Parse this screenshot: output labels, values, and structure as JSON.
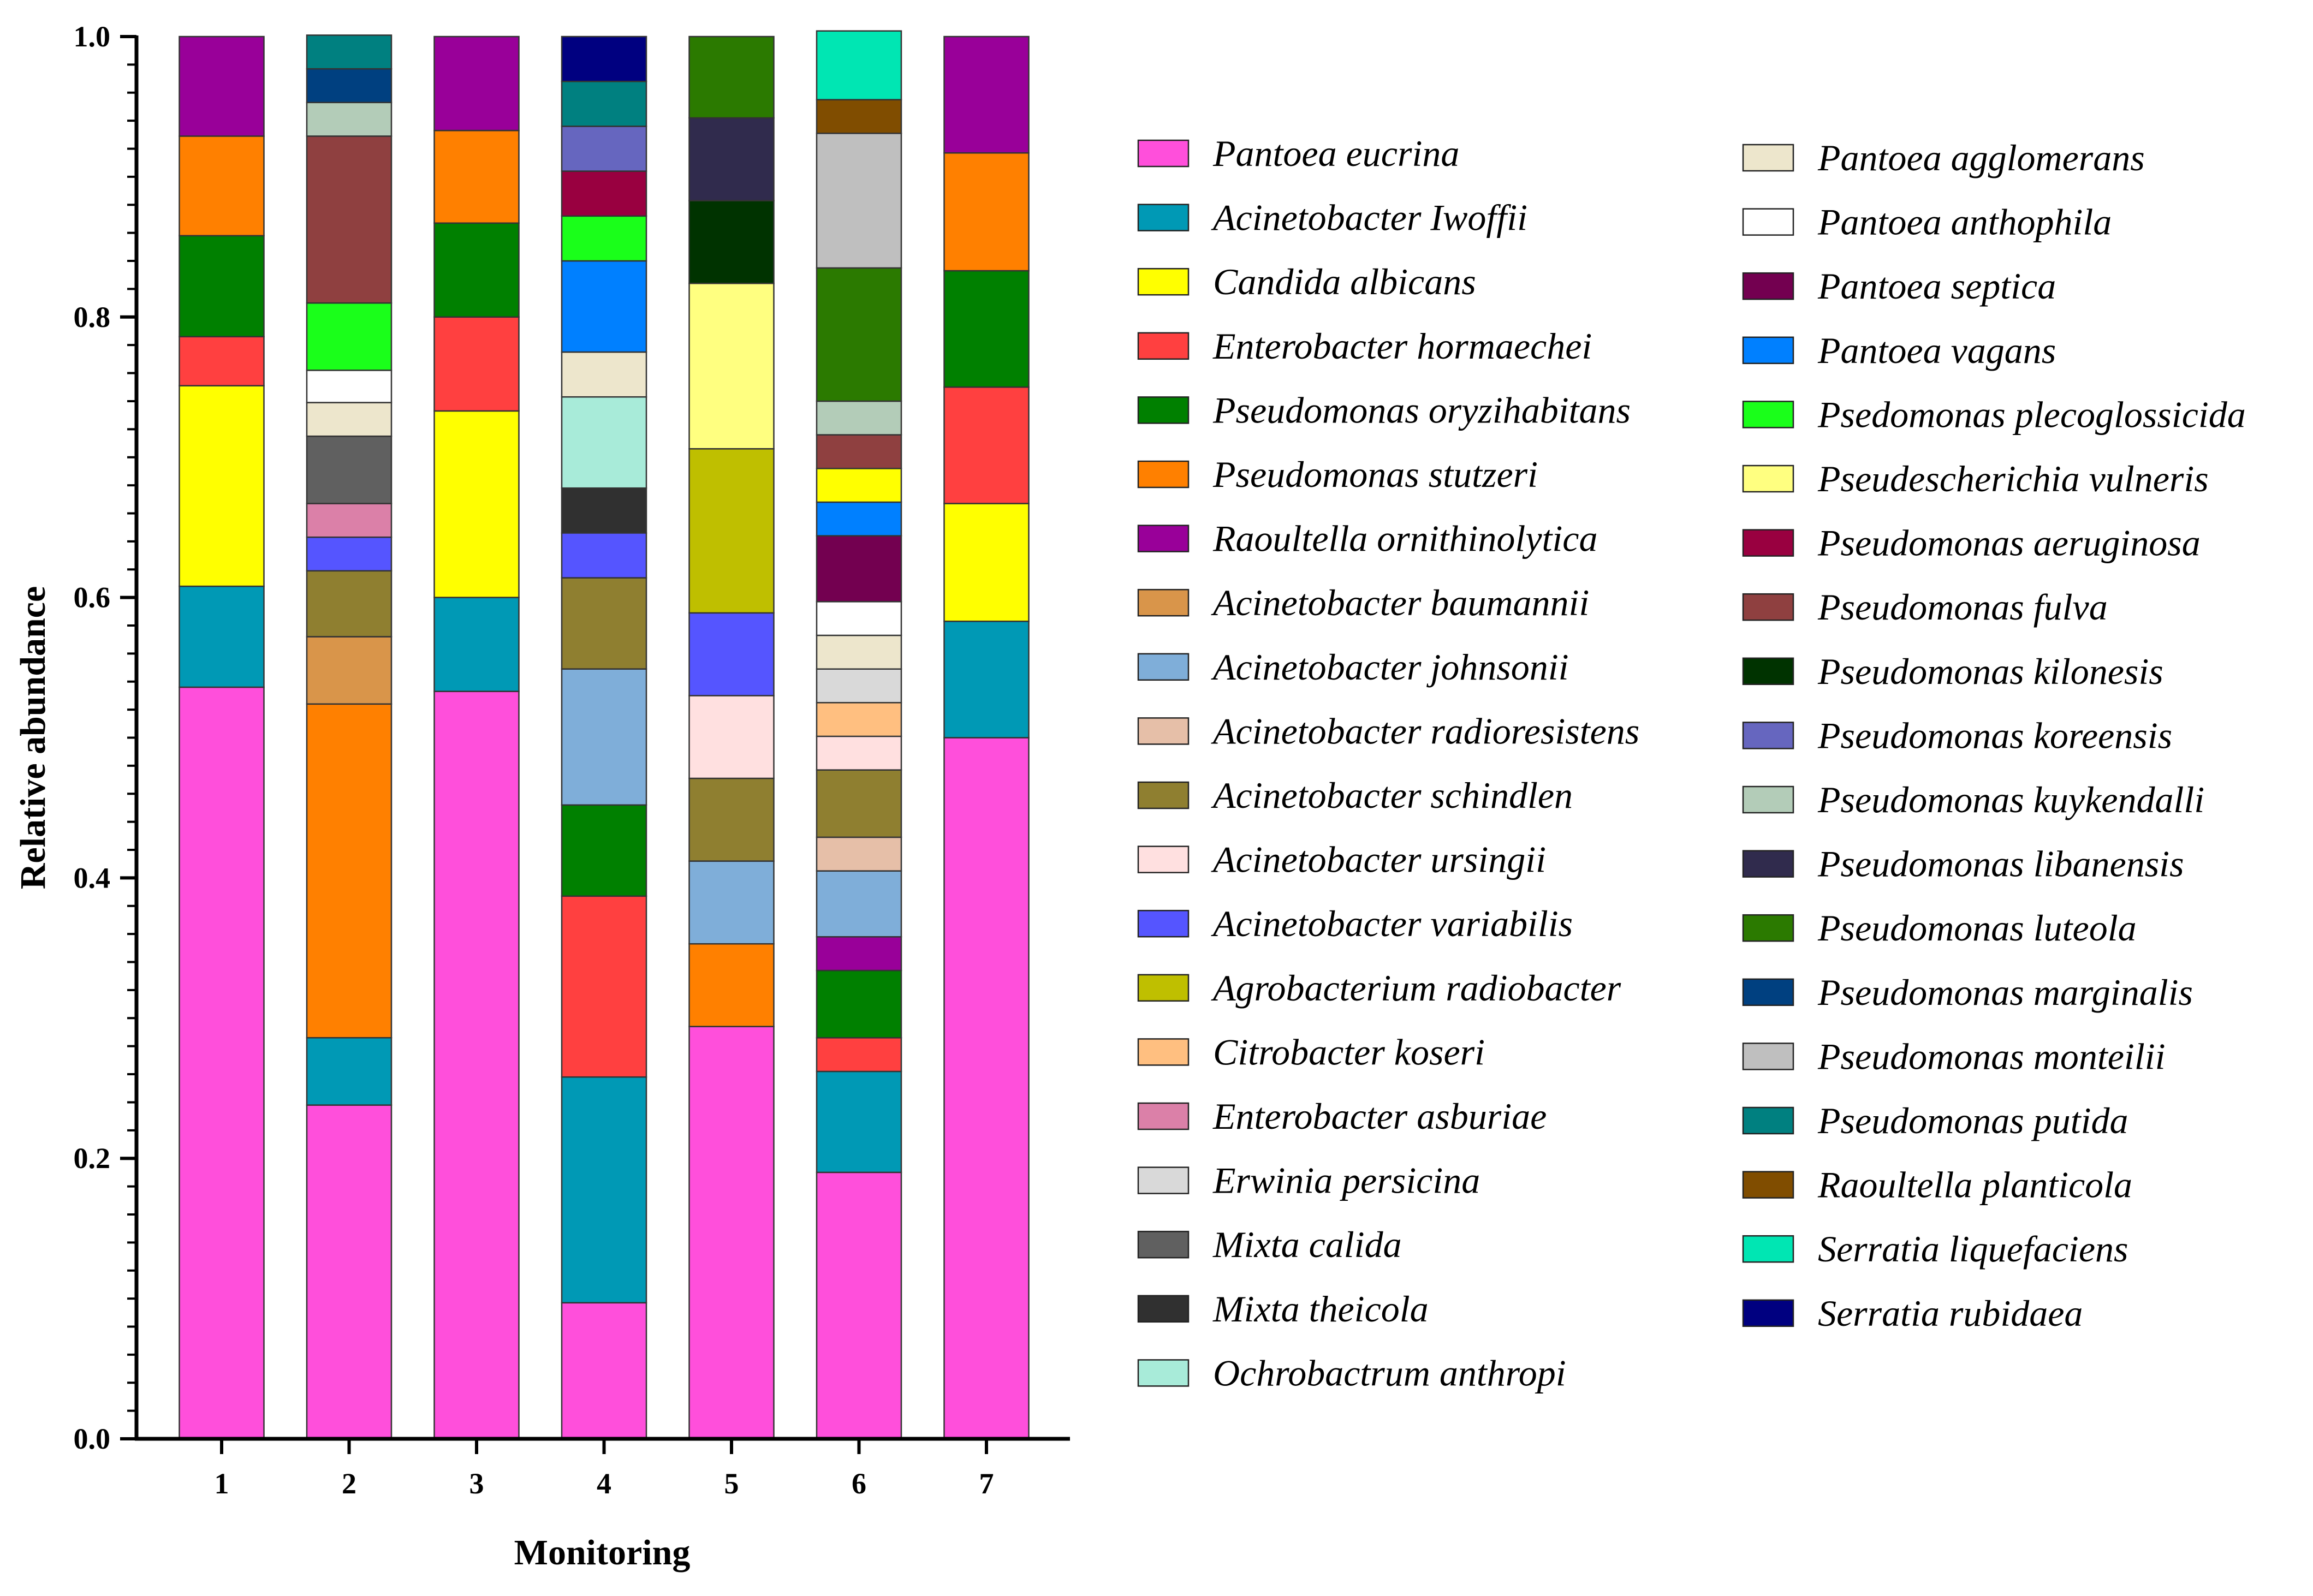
{
  "chart_data": {
    "type": "bar",
    "stacked": true,
    "xlabel": "Monitoring",
    "ylabel": "Relative abundance",
    "ylim": [
      0,
      1.0
    ],
    "ytick_labels": [
      "0.0",
      "0.2",
      "0.4",
      "0.6",
      "0.8",
      "1.0"
    ],
    "categories": [
      "1",
      "2",
      "3",
      "4",
      "5",
      "6",
      "7"
    ],
    "species": [
      {
        "name": "Pantoea eucrina",
        "color": "#FF4FDB"
      },
      {
        "name": "Acinetobacter Iwoffii",
        "color": "#0099B5"
      },
      {
        "name": "Candida albicans",
        "color": "#FFFF00"
      },
      {
        "name": "Enterobacter hormaechei",
        "color": "#FF4040"
      },
      {
        "name": "Pseudomonas oryzihabitans",
        "color": "#008000"
      },
      {
        "name": "Pseudomonas stutzeri",
        "color": "#FF8000"
      },
      {
        "name": "Raoultella ornithinolytica",
        "color": "#990099"
      },
      {
        "name": "Acinetobacter baumannii",
        "color": "#D9954A"
      },
      {
        "name": "Acinetobacter johnsonii",
        "color": "#7FAED9"
      },
      {
        "name": "Acinetobacter radioresistens",
        "color": "#E6BFA8"
      },
      {
        "name": "Acinetobacter schindlen",
        "color": "#8F7F30"
      },
      {
        "name": "Acinetobacter ursingii",
        "color": "#FFE0E0"
      },
      {
        "name": "Acinetobacter variabilis",
        "color": "#5555FF"
      },
      {
        "name": "Agrobacterium radiobacter",
        "color": "#BFBF00"
      },
      {
        "name": "Citrobacter koseri",
        "color": "#FFBF80"
      },
      {
        "name": "Enterobacter asburiae",
        "color": "#DB80A8"
      },
      {
        "name": "Erwinia persicina",
        "color": "#D9D9D9"
      },
      {
        "name": "Mixta calida",
        "color": "#606060"
      },
      {
        "name": "Mixta theicola",
        "color": "#303030"
      },
      {
        "name": "Ochrobactrum anthropi",
        "color": "#A8EBD9"
      },
      {
        "name": "Pantoea agglomerans",
        "color": "#EDE6CC"
      },
      {
        "name": "Pantoea anthophila",
        "color": "#FFFFFF"
      },
      {
        "name": "Pantoea septica",
        "color": "#730050"
      },
      {
        "name": "Pantoea vagans",
        "color": "#0080FF"
      },
      {
        "name": "Psedomonas plecoglossicida",
        "color": "#1AFF1A"
      },
      {
        "name": "Pseudescherichia vulneris",
        "color": "#FFFF80"
      },
      {
        "name": "Pseudomonas aeruginosa",
        "color": "#990040"
      },
      {
        "name": "Pseudomonas fulva",
        "color": "#8F4040"
      },
      {
        "name": "Pseudomonas kilonesis",
        "color": "#003300"
      },
      {
        "name": "Pseudomonas koreensis",
        "color": "#6666BF"
      },
      {
        "name": "Pseudomonas kuykendalli",
        "color": "#B3CCB8"
      },
      {
        "name": "Pseudomonas libanensis",
        "color": "#302B4D"
      },
      {
        "name": "Pseudomonas luteola",
        "color": "#2B7A00"
      },
      {
        "name": "Pseudomonas marginalis",
        "color": "#004080"
      },
      {
        "name": "Pseudomonas monteilii",
        "color": "#BFBFBF"
      },
      {
        "name": "Pseudomonas putida",
        "color": "#008080"
      },
      {
        "name": "Raoultella planticola",
        "color": "#804D00"
      },
      {
        "name": "Serratia liquefaciens",
        "color": "#00E6B3"
      },
      {
        "name": "Serratia rubidaea",
        "color": "#000080"
      }
    ],
    "stacks": [
      [
        {
          "species": "Pantoea eucrina",
          "value": 0.536
        },
        {
          "species": "Acinetobacter Iwoffii",
          "value": 0.072
        },
        {
          "species": "Candida albicans",
          "value": 0.143
        },
        {
          "species": "Enterobacter hormaechei",
          "value": 0.035
        },
        {
          "species": "Pseudomonas oryzihabitans",
          "value": 0.072
        },
        {
          "species": "Pseudomonas stutzeri",
          "value": 0.071
        },
        {
          "species": "Raoultella ornithinolytica",
          "value": 0.071
        }
      ],
      [
        {
          "species": "Pantoea eucrina",
          "value": 0.238
        },
        {
          "species": "Acinetobacter Iwoffii",
          "value": 0.048
        },
        {
          "species": "Pseudomonas stutzeri",
          "value": 0.238
        },
        {
          "species": "Acinetobacter baumannii",
          "value": 0.048
        },
        {
          "species": "Acinetobacter schindlen",
          "value": 0.047
        },
        {
          "species": "Acinetobacter variabilis",
          "value": 0.024
        },
        {
          "species": "Enterobacter asburiae",
          "value": 0.024
        },
        {
          "species": "Mixta calida",
          "value": 0.048
        },
        {
          "species": "Pantoea agglomerans",
          "value": 0.024
        },
        {
          "species": "Pantoea anthophila",
          "value": 0.023
        },
        {
          "species": "Psedomonas plecoglossicida",
          "value": 0.048
        },
        {
          "species": "Pseudomonas fulva",
          "value": 0.119
        },
        {
          "species": "Pseudomonas kuykendalli",
          "value": 0.024
        },
        {
          "species": "Pseudomonas marginalis",
          "value": 0.024
        },
        {
          "species": "Pseudomonas putida",
          "value": 0.024
        }
      ],
      [
        {
          "species": "Pantoea eucrina",
          "value": 0.533
        },
        {
          "species": "Acinetobacter Iwoffii",
          "value": 0.067
        },
        {
          "species": "Candida albicans",
          "value": 0.133
        },
        {
          "species": "Enterobacter hormaechei",
          "value": 0.067
        },
        {
          "species": "Pseudomonas oryzihabitans",
          "value": 0.067
        },
        {
          "species": "Pseudomonas stutzeri",
          "value": 0.066
        },
        {
          "species": "Raoultella ornithinolytica",
          "value": 0.067
        }
      ],
      [
        {
          "species": "Pantoea eucrina",
          "value": 0.097
        },
        {
          "species": "Acinetobacter Iwoffii",
          "value": 0.161
        },
        {
          "species": "Enterobacter hormaechei",
          "value": 0.129
        },
        {
          "species": "Pseudomonas oryzihabitans",
          "value": 0.065
        },
        {
          "species": "Acinetobacter johnsonii",
          "value": 0.097
        },
        {
          "species": "Acinetobacter schindlen",
          "value": 0.065
        },
        {
          "species": "Acinetobacter variabilis",
          "value": 0.032
        },
        {
          "species": "Mixta theicola",
          "value": 0.032
        },
        {
          "species": "Ochrobactrum anthropi",
          "value": 0.065
        },
        {
          "species": "Pantoea agglomerans",
          "value": 0.032
        },
        {
          "species": "Pantoea vagans",
          "value": 0.065
        },
        {
          "species": "Psedomonas plecoglossicida",
          "value": 0.032
        },
        {
          "species": "Pseudomonas aeruginosa",
          "value": 0.032
        },
        {
          "species": "Pseudomonas koreensis",
          "value": 0.032
        },
        {
          "species": "Pseudomonas putida",
          "value": 0.032
        },
        {
          "species": "Serratia rubidaea",
          "value": 0.032
        }
      ],
      [
        {
          "species": "Pantoea eucrina",
          "value": 0.294
        },
        {
          "species": "Pseudomonas stutzeri",
          "value": 0.059
        },
        {
          "species": "Acinetobacter johnsonii",
          "value": 0.059
        },
        {
          "species": "Acinetobacter schindlen",
          "value": 0.059
        },
        {
          "species": "Acinetobacter ursingii",
          "value": 0.059
        },
        {
          "species": "Acinetobacter variabilis",
          "value": 0.059
        },
        {
          "species": "Agrobacterium radiobacter",
          "value": 0.117
        },
        {
          "species": "Pseudescherichia vulneris",
          "value": 0.118
        },
        {
          "species": "Pseudomonas kilonesis",
          "value": 0.059
        },
        {
          "species": "Pseudomonas libanensis",
          "value": 0.059
        },
        {
          "species": "Pseudomonas luteola",
          "value": 0.058
        }
      ],
      [
        {
          "species": "Pantoea eucrina",
          "value": 0.19
        },
        {
          "species": "Acinetobacter Iwoffii",
          "value": 0.072
        },
        {
          "species": "Enterobacter hormaechei",
          "value": 0.024
        },
        {
          "species": "Pseudomonas oryzihabitans",
          "value": 0.048
        },
        {
          "species": "Raoultella ornithinolytica",
          "value": 0.024
        },
        {
          "species": "Acinetobacter johnsonii",
          "value": 0.047
        },
        {
          "species": "Acinetobacter radioresistens",
          "value": 0.024
        },
        {
          "species": "Acinetobacter schindlen",
          "value": 0.048
        },
        {
          "species": "Acinetobacter ursingii",
          "value": 0.024
        },
        {
          "species": "Citrobacter koseri",
          "value": 0.024
        },
        {
          "species": "Erwinia persicina",
          "value": 0.024
        },
        {
          "species": "Pantoea agglomerans",
          "value": 0.024
        },
        {
          "species": "Pantoea anthophila",
          "value": 0.024
        },
        {
          "species": "Pantoea septica",
          "value": 0.047
        },
        {
          "species": "Pantoea vagans",
          "value": 0.024
        },
        {
          "species": "Candida albicans",
          "value": 0.024
        },
        {
          "species": "Pseudomonas fulva",
          "value": 0.024
        },
        {
          "species": "Pseudomonas kuykendalli",
          "value": 0.024
        },
        {
          "species": "Pseudomonas luteola",
          "value": 0.095
        },
        {
          "species": "Pseudomonas monteilii",
          "value": 0.096
        },
        {
          "species": "Raoultella planticola",
          "value": 0.024
        },
        {
          "species": "Serratia liquefaciens",
          "value": 0.049
        }
      ],
      [
        {
          "species": "Pantoea eucrina",
          "value": 0.5
        },
        {
          "species": "Acinetobacter Iwoffii",
          "value": 0.083
        },
        {
          "species": "Candida albicans",
          "value": 0.084
        },
        {
          "species": "Enterobacter hormaechei",
          "value": 0.083
        },
        {
          "species": "Pseudomonas oryzihabitans",
          "value": 0.083
        },
        {
          "species": "Pseudomonas stutzeri",
          "value": 0.084
        },
        {
          "species": "Raoultella ornithinolytica",
          "value": 0.083
        }
      ]
    ]
  }
}
